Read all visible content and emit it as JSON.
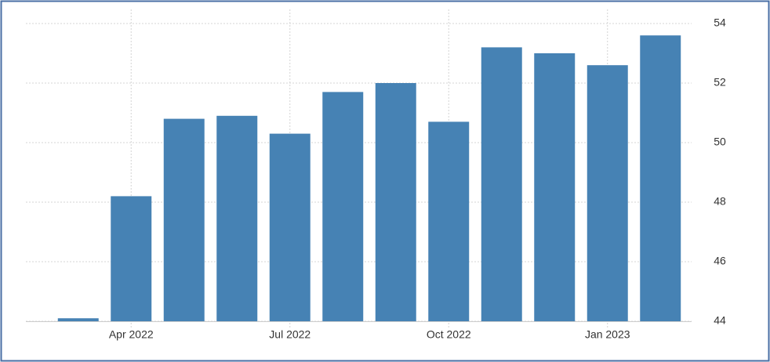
{
  "chart_data": {
    "type": "bar",
    "categories": [
      null,
      "Apr 2022",
      null,
      null,
      "Jul 2022",
      null,
      null,
      "Oct 2022",
      null,
      null,
      "Jan 2023",
      null
    ],
    "values": [
      44.1,
      48.2,
      50.8,
      50.9,
      50.3,
      51.7,
      52.0,
      50.7,
      53.2,
      53.0,
      52.6,
      53.6
    ],
    "color": "#4682b4",
    "ylim": [
      44,
      54
    ],
    "yticks": [
      44,
      46,
      48,
      50,
      52,
      54
    ],
    "grid": true,
    "y_axis_side": "right"
  }
}
